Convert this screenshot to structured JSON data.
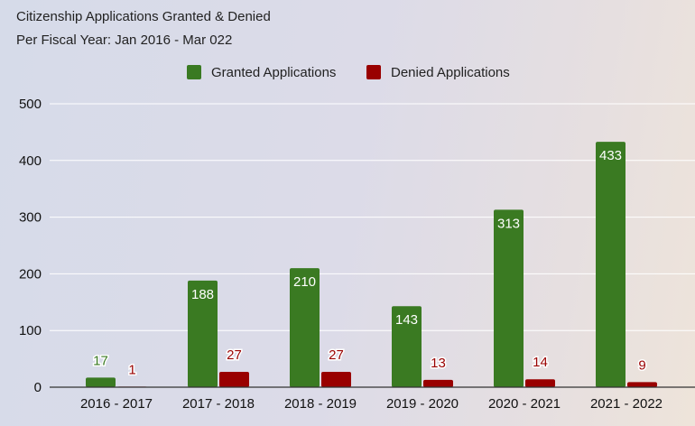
{
  "chart_data": {
    "type": "bar",
    "title": "Citizenship Applications Granted & Denied",
    "subtitle": "Per Fiscal Year: Jan 2016 - Mar 022",
    "categories": [
      "2016 - 2017",
      "2017 - 2018",
      "2018 - 2019",
      "2019 - 2020",
      "2020 - 2021",
      "2021 - 2022"
    ],
    "series": [
      {
        "name": "Granted Applications",
        "color": "#3a7a22",
        "values": [
          17,
          188,
          210,
          143,
          313,
          433
        ]
      },
      {
        "name": "Denied Applications",
        "color": "#990000",
        "values": [
          1,
          27,
          27,
          13,
          14,
          9
        ]
      }
    ],
    "ylim": [
      0,
      500
    ],
    "yticks": [
      0,
      100,
      200,
      300,
      400,
      500
    ],
    "grid": true,
    "legend": "top-center",
    "xlabel": "",
    "ylabel": ""
  }
}
